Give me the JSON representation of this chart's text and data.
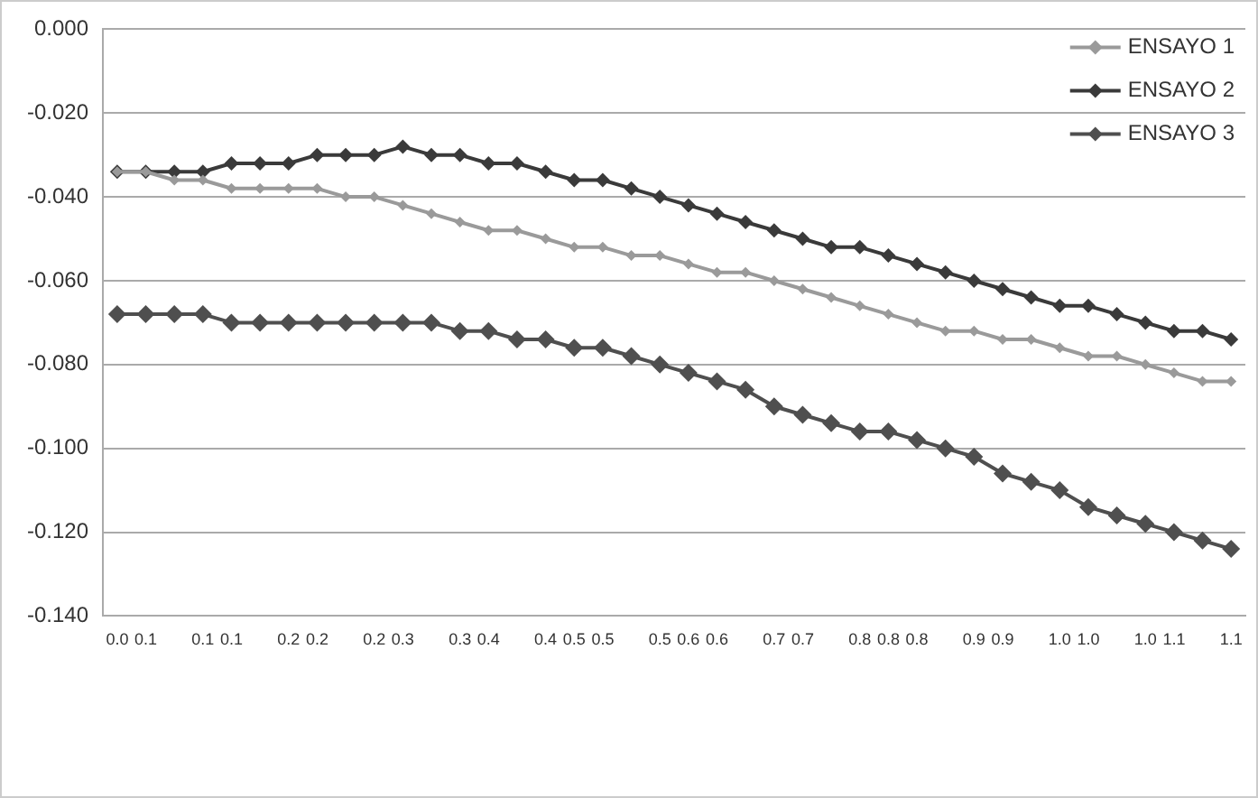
{
  "chart_data": {
    "type": "line",
    "categories": [
      "0.0",
      "0.1",
      null,
      "0.1",
      "0.1",
      null,
      "0.2",
      "0.2",
      null,
      "0.2",
      "0.3",
      null,
      "0.3",
      "0.4",
      null,
      "0.4",
      "0.5",
      "0.5",
      null,
      "0.5",
      "0.6",
      "0.6",
      null,
      "0.7",
      "0.7",
      null,
      "0.8",
      "0.8",
      "0.8",
      null,
      "0.9",
      "0.9",
      null,
      "1.0",
      "1.0",
      null,
      "1.0",
      "1.1",
      null,
      "1.1"
    ],
    "series": [
      {
        "name": "ENSAYO 1",
        "color": "#9a9a9a",
        "values": [
          -0.034,
          -0.034,
          -0.036,
          -0.036,
          -0.038,
          -0.038,
          -0.038,
          -0.038,
          -0.04,
          -0.04,
          -0.042,
          -0.044,
          -0.046,
          -0.048,
          -0.048,
          -0.05,
          -0.052,
          -0.052,
          -0.054,
          -0.054,
          -0.056,
          -0.058,
          -0.058,
          -0.06,
          -0.062,
          -0.064,
          -0.066,
          -0.068,
          -0.07,
          -0.072,
          -0.072,
          -0.074,
          -0.074,
          -0.076,
          -0.078,
          -0.078,
          -0.08,
          -0.082,
          -0.084,
          -0.084
        ]
      },
      {
        "name": "ENSAYO 2",
        "color": "#3a3a3a",
        "values": [
          -0.034,
          -0.034,
          -0.034,
          -0.034,
          -0.032,
          -0.032,
          -0.032,
          -0.03,
          -0.03,
          -0.03,
          -0.028,
          -0.03,
          -0.03,
          -0.032,
          -0.032,
          -0.034,
          -0.036,
          -0.036,
          -0.038,
          -0.04,
          -0.042,
          -0.044,
          -0.046,
          -0.048,
          -0.05,
          -0.052,
          -0.052,
          -0.054,
          -0.056,
          -0.058,
          -0.06,
          -0.062,
          -0.064,
          -0.066,
          -0.066,
          -0.068,
          -0.07,
          -0.072,
          -0.072,
          -0.074
        ]
      },
      {
        "name": "ENSAYO 3",
        "color": "#4f4f4f",
        "values": [
          -0.068,
          -0.068,
          -0.068,
          -0.068,
          -0.07,
          -0.07,
          -0.07,
          -0.07,
          -0.07,
          -0.07,
          -0.07,
          -0.07,
          -0.072,
          -0.072,
          -0.074,
          -0.074,
          -0.076,
          -0.076,
          -0.078,
          -0.08,
          -0.082,
          -0.084,
          -0.086,
          -0.09,
          -0.092,
          -0.094,
          -0.096,
          -0.096,
          -0.098,
          -0.1,
          -0.102,
          -0.106,
          -0.108,
          -0.11,
          -0.114,
          -0.116,
          -0.118,
          -0.12,
          -0.122,
          -0.124
        ]
      }
    ],
    "ylim": [
      -0.14,
      0
    ],
    "yticks": [
      {
        "value": 0,
        "label": "0.000"
      },
      {
        "value": -0.02,
        "label": "-0.020"
      },
      {
        "value": -0.04,
        "label": "-0.040"
      },
      {
        "value": -0.06,
        "label": "-0.060"
      },
      {
        "value": -0.08,
        "label": "-0.080"
      },
      {
        "value": -0.1,
        "label": "-0.100"
      },
      {
        "value": -0.12,
        "label": "-0.120"
      },
      {
        "value": -0.14,
        "label": "-0.140"
      }
    ],
    "grid": "y",
    "legend": "top right",
    "marker": "diamond",
    "line_style": "solid"
  }
}
